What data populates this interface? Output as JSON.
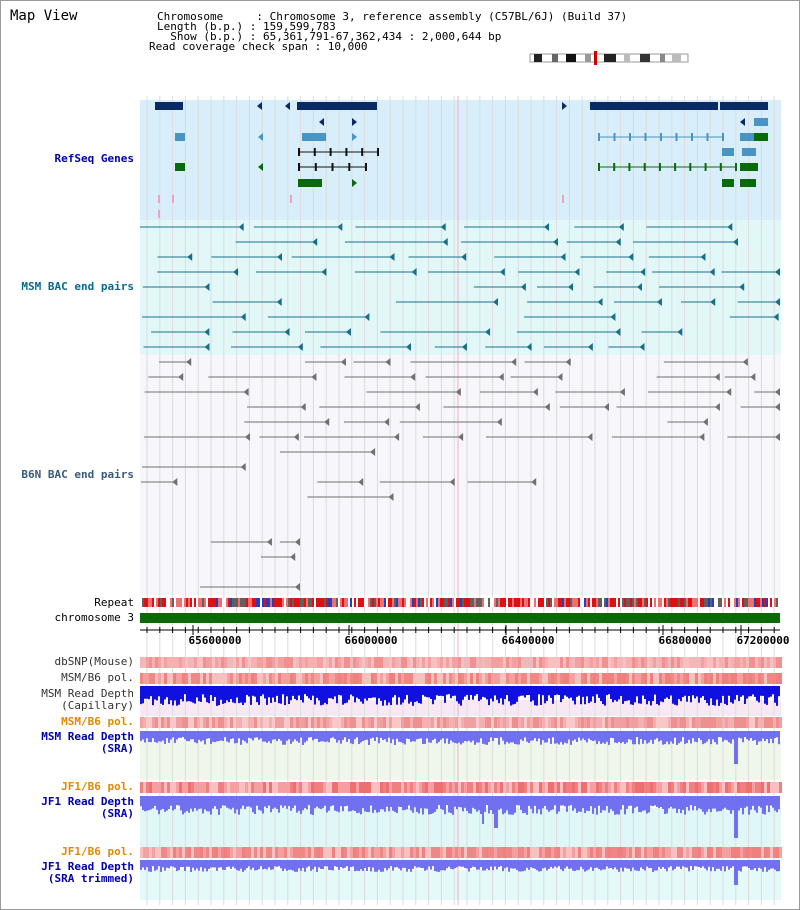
{
  "header": {
    "title": "Map View",
    "chromosome_line": "Chromosome     : Chromosome 3, reference assembly (C57BL/6J) (Build 37)",
    "length_line": "Length (b.p.) : 159,599,783",
    "show_line": "  Show (b.p.) : 65,361,791-67,362,434 : 2,000,644 bp",
    "coverage_line": "Read coverage check span : 10,000"
  },
  "tracks": {
    "refseq": "RefSeq Genes",
    "msm_bac": "MSM BAC end pairs",
    "b6n_bac": "B6N BAC end pairs",
    "repeat": "Repeat",
    "chromosome": "chromosome 3",
    "dbsnp": "dbSNP(Mouse)",
    "msm_b6_pol_1": "MSM/B6 pol.",
    "msm_depth_cap_1": "MSM Read Depth",
    "msm_depth_cap_2": "(Capillary)",
    "msm_b6_pol_2": "MSM/B6 pol.",
    "msm_depth_sra_1": "MSM Read Depth",
    "msm_depth_sra_2": "(SRA)",
    "jf1_b6_pol_1": "JF1/B6 pol.",
    "jf1_depth_sra_1": "JF1 Read Depth",
    "jf1_depth_sra_2": "(SRA)",
    "jf1_b6_pol_2": "JF1/B6 pol.",
    "jf1_depth_trim_1": "JF1 Read Depth",
    "jf1_depth_trim_2": "(SRA trimmed)"
  },
  "axis": {
    "ticks": [
      "65600000",
      "66000000",
      "66400000",
      "66800000",
      "67200000"
    ]
  },
  "colors": {
    "refseq_bg": "#d8eefa",
    "msm_bg": "#e2f8f8",
    "gene_dark": "#0a2a66",
    "gene_light": "#4a94c4",
    "gene_green": "#0a6a0a",
    "msm_pair": "#1a6e8a",
    "b6n_pair": "#707070",
    "chromosome_bar": "#0a6a0a",
    "depth_blue": "#1010e0",
    "depth_light": "#7070f0",
    "label_navy": "#0000aa",
    "label_teal": "#0a6a8a",
    "label_slate": "#3a5a7a",
    "label_orange": "#e08a00"
  }
}
